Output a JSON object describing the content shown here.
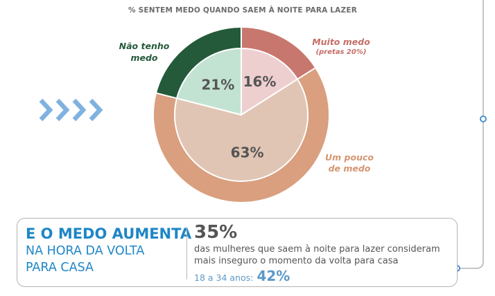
{
  "chart_data": {
    "type": "pie",
    "title": "% SENTEM MEDO QUANDO SAEM À NOITE PARA LAZER",
    "slices": [
      {
        "name": "Muito medo",
        "note": "(pretas 20%)",
        "value": 16,
        "value_label": "16%",
        "color": "#c8776f",
        "inner_color": "#eecfcf"
      },
      {
        "name": "Um pouco de medo",
        "value": 63,
        "value_label": "63%",
        "color": "#d99f7e",
        "inner_color": "#e1c5b4"
      },
      {
        "name": "Não tenho medo",
        "value": 21,
        "value_label": "21%",
        "color": "#245a3a",
        "inner_color": "#c3e3d2"
      }
    ],
    "label_lines": {
      "muito_medo": "Muito medo",
      "muito_medo_note": "(pretas 20%)",
      "um_pouco_1": "Um pouco",
      "um_pouco_2": "de medo",
      "nao_tenho_1": "Não tenho",
      "nao_tenho_2": "medo"
    }
  },
  "info_box": {
    "headline": "E O MEDO AUMENTA",
    "subline_1": "NA HORA DA VOLTA",
    "subline_2": "PARA CASA",
    "stat_value": "35%",
    "stat_text": "das mulheres que saem à noite para lazer consideram mais inseguro o momento da volta para casa",
    "age_label": "18 a 34 anos:",
    "age_value": "42%"
  },
  "colors": {
    "accent_blue": "#1e86c6",
    "arrow_blue": "#7fb2e0",
    "connector_gray": "#b3b3b3",
    "dot_blue": "#4a90d0"
  }
}
